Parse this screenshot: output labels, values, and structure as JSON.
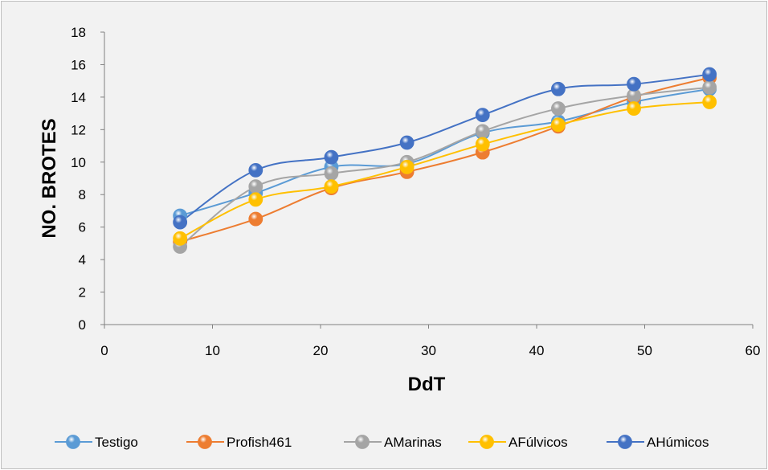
{
  "chart_data": {
    "type": "line",
    "title": "",
    "xlabel": "DdT",
    "ylabel": "NO. BROTES",
    "xlim": [
      0,
      60
    ],
    "ylim": [
      0,
      18
    ],
    "xticks": [
      0,
      10,
      20,
      30,
      40,
      50,
      60
    ],
    "yticks": [
      0,
      2,
      4,
      6,
      8,
      10,
      12,
      14,
      16,
      18
    ],
    "grid": false,
    "legend_position": "bottom",
    "x": [
      7,
      14,
      21,
      28,
      35,
      42,
      49,
      56
    ],
    "series": [
      {
        "name": "Testigo",
        "color": "#5b9bd5",
        "values": [
          6.7,
          8.1,
          9.7,
          9.9,
          11.8,
          12.5,
          13.7,
          14.5
        ]
      },
      {
        "name": "Profish461",
        "color": "#ed7d31",
        "values": [
          5.1,
          6.5,
          8.4,
          9.4,
          10.6,
          12.2,
          14.0,
          15.2
        ]
      },
      {
        "name": "AMarinas",
        "color": "#a5a5a5",
        "values": [
          4.8,
          8.5,
          9.3,
          10.0,
          11.9,
          13.3,
          14.1,
          14.6
        ]
      },
      {
        "name": "AFúlvicos",
        "color": "#ffc000",
        "values": [
          5.3,
          7.7,
          8.5,
          9.7,
          11.1,
          12.3,
          13.3,
          13.7
        ]
      },
      {
        "name": "AHúmicos",
        "color": "#4472c4",
        "values": [
          6.3,
          9.5,
          10.3,
          11.2,
          12.9,
          14.5,
          14.8,
          15.4
        ]
      }
    ]
  }
}
